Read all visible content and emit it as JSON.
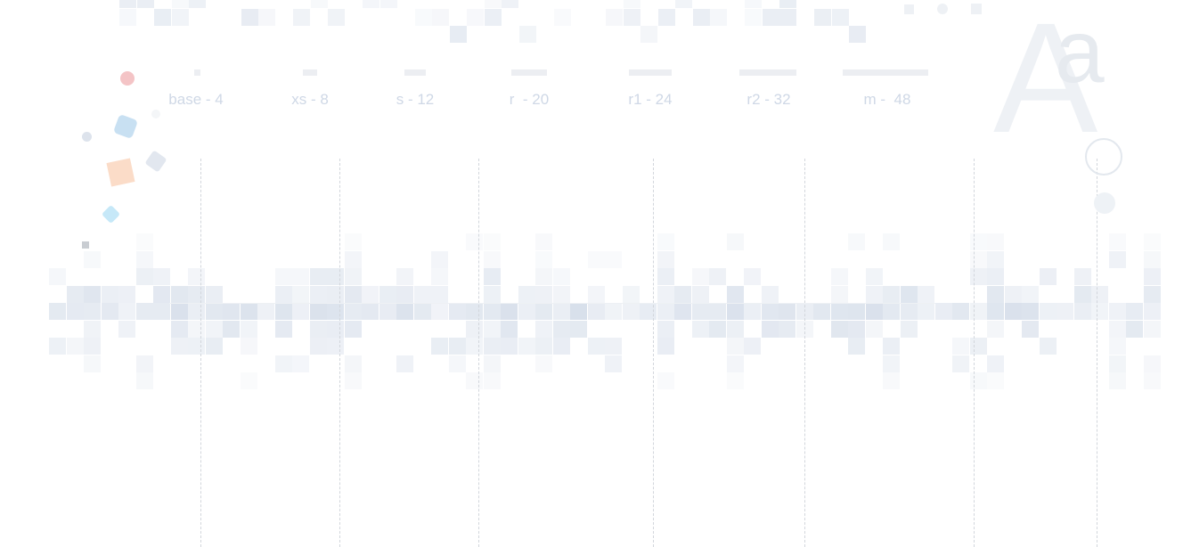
{
  "spacing_scale": [
    {
      "label": "base - 4",
      "value": 4
    },
    {
      "label": "xs - 8",
      "value": 8
    },
    {
      "label": "s - 12",
      "value": 12
    },
    {
      "label": "r  - 20",
      "value": 20
    },
    {
      "label": "r1 - 24",
      "value": 24
    },
    {
      "label": "r2 - 32",
      "value": 32
    },
    {
      "label": "m -  48",
      "value": 48
    }
  ],
  "typography_glyph": {
    "upper": "A",
    "lower": "a"
  },
  "colors": {
    "label": "#cfd8e6",
    "bar": "#eceef2",
    "guide": "#d2d6dc",
    "pixel": "#e8ecf2",
    "accent_red": "#f4c4c6",
    "accent_blue": "#c8e0f2",
    "accent_orange": "#fbdcc8",
    "accent_cyan": "#c6e8f8",
    "accent_gray": "#dde3ec"
  }
}
